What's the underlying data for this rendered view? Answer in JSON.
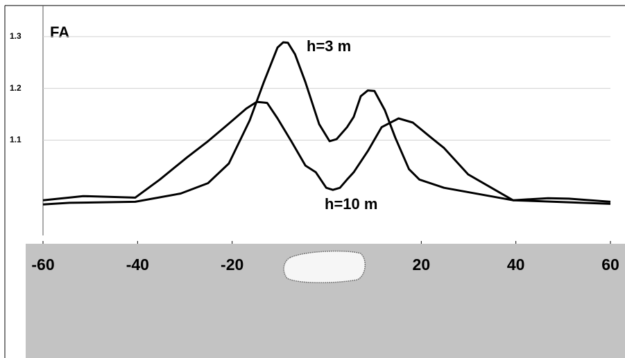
{
  "chart_data": {
    "type": "line",
    "ylabel": "FA",
    "xlim": [
      -60,
      60
    ],
    "ylim": [
      0.9,
      1.36
    ],
    "xticks": [
      -60,
      -40,
      -20,
      20,
      40,
      60
    ],
    "yticks": [
      1.1,
      1.2,
      1.3
    ],
    "grid": true,
    "series": [
      {
        "name": "h=3 m",
        "color": "#000000",
        "x": [
          -60,
          -54.4,
          -40.5,
          -30.9,
          -25.1,
          -20.7,
          -16.3,
          -13.3,
          -10.4,
          -9.2,
          -8.2,
          -6.7,
          -4.5,
          -1.6,
          0.6,
          2.1,
          4.3,
          5.7,
          7.2,
          8.7,
          10.1,
          12.3,
          14.5,
          17.4,
          19.6,
          24.8,
          39.4,
          48.2,
          60
        ],
        "values": [
          0.976,
          0.979,
          0.981,
          0.997,
          1.017,
          1.055,
          1.138,
          1.212,
          1.279,
          1.289,
          1.288,
          1.266,
          1.212,
          1.131,
          1.098,
          1.102,
          1.125,
          1.145,
          1.185,
          1.196,
          1.195,
          1.158,
          1.105,
          1.044,
          1.024,
          1.008,
          0.984,
          0.981,
          0.977
        ]
      },
      {
        "name": "h=10 m",
        "color": "#000000",
        "x": [
          -60,
          -51.5,
          -40.5,
          -35.3,
          -29.5,
          -25.1,
          -20.7,
          -17.0,
          -14.8,
          -12.6,
          -10.4,
          -7.5,
          -4.5,
          -2.3,
          -0.1,
          1.3,
          2.8,
          4.3,
          5.7,
          8.7,
          11.6,
          15.2,
          18.2,
          21.8,
          24.8,
          29.9,
          39.4,
          46.8,
          51.2,
          60
        ],
        "values": [
          0.984,
          0.992,
          0.989,
          1.024,
          1.067,
          1.098,
          1.132,
          1.161,
          1.174,
          1.172,
          1.142,
          1.098,
          1.051,
          1.038,
          1.008,
          1.004,
          1.008,
          1.024,
          1.038,
          1.079,
          1.125,
          1.142,
          1.134,
          1.107,
          1.085,
          1.034,
          0.984,
          0.988,
          0.987,
          0.981
        ]
      }
    ]
  }
}
